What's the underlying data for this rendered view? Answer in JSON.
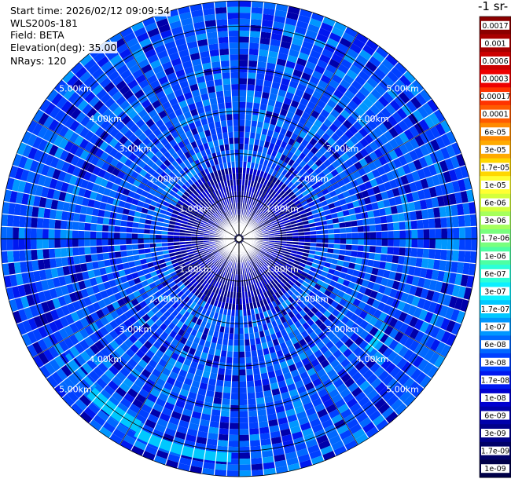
{
  "header": {
    "start_time": "Start time: 2026/02/12 09:09:54",
    "instrument": "WLS200s-181",
    "field": "Field: BETA",
    "elevation": "Elevation(deg): 35.00",
    "nrays": "NRays: 120"
  },
  "chart_data": {
    "type": "heatmap",
    "projection": "polar",
    "field": "BETA",
    "nrays": 120,
    "elevation_deg": 35.0,
    "range_rings_km": [
      1.0,
      2.0,
      3.0,
      4.0,
      5.0
    ],
    "ring_labels": [
      "1.00km",
      "2.00km",
      "3.00km",
      "4.00km",
      "5.00km"
    ],
    "max_range_km": 5.6,
    "grid": true,
    "colorbar": {
      "title_fragment": "-1 sr-",
      "scale": "log",
      "ticks": [
        "0.0017",
        "0.001",
        "0.0006",
        "0.0003",
        "0.00017",
        "0.0001",
        "6e-05",
        "3e-05",
        "1.7e-05",
        "1e-05",
        "6e-06",
        "3e-06",
        "1.7e-06",
        "1e-06",
        "6e-07",
        "3e-07",
        "1.7e-07",
        "1e-07",
        "6e-08",
        "3e-08",
        "1.7e-08",
        "1e-08",
        "6e-09",
        "3e-09",
        "1.7e-09",
        "1e-09"
      ],
      "colors": [
        "#8b0000",
        "#a80000",
        "#cc0000",
        "#ee0000",
        "#ff3300",
        "#ff5a00",
        "#ff8a00",
        "#ffaa00",
        "#ffd700",
        "#ffff33",
        "#d4ff3c",
        "#a6ff5c",
        "#78ff7e",
        "#4dffa3",
        "#2cffd8",
        "#0cf0ff",
        "#00c8ff",
        "#0097ff",
        "#0068ff",
        "#0040ff",
        "#0018f0",
        "#0000d0",
        "#0000aa",
        "#00008a",
        "#000068",
        "#000048"
      ]
    },
    "background_value": "3e-08",
    "features": [
      {
        "name": "southwest-arc",
        "value": "1.7e-07"
      },
      {
        "name": "southeast-patch",
        "value": "1.7e-07"
      }
    ]
  }
}
